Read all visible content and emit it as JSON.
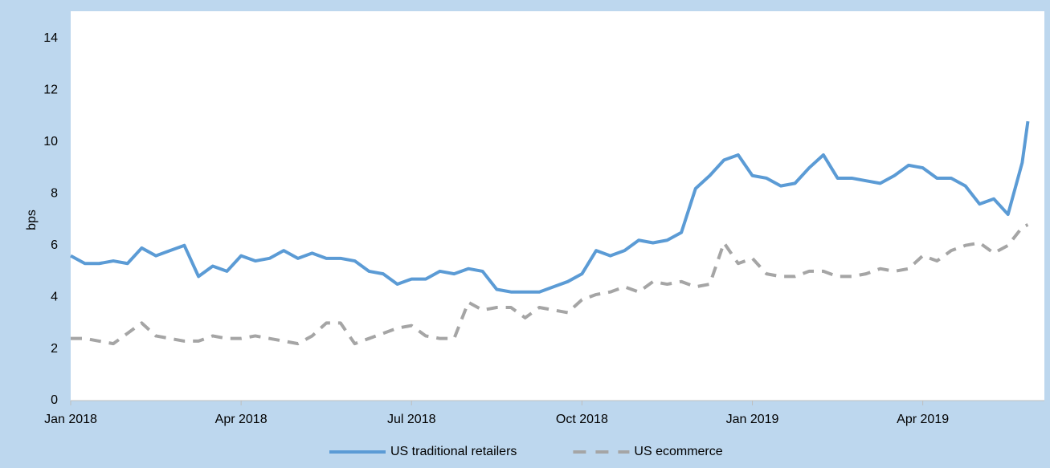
{
  "chart_data": {
    "type": "line",
    "y_label": "bps",
    "x": [
      0,
      0.25,
      0.5,
      0.75,
      1,
      1.25,
      1.5,
      1.75,
      2,
      2.25,
      2.5,
      2.75,
      3,
      3.25,
      3.5,
      3.75,
      4,
      4.25,
      4.5,
      4.75,
      5,
      5.25,
      5.5,
      5.75,
      6,
      6.25,
      6.5,
      6.75,
      7,
      7.25,
      7.5,
      7.75,
      8,
      8.25,
      8.5,
      8.75,
      9,
      9.25,
      9.5,
      9.75,
      10,
      10.25,
      10.5,
      10.75,
      11,
      11.25,
      11.5,
      11.75,
      12,
      12.25,
      12.5,
      12.75,
      13,
      13.25,
      13.5,
      13.75,
      14,
      14.25,
      14.5,
      14.75,
      15,
      15.25,
      15.5,
      15.75,
      16,
      16.25,
      16.5,
      16.75,
      16.85
    ],
    "series": [
      {
        "name": "US traditional retailers",
        "color": "#5b9bd5",
        "dashed": false,
        "values": [
          5.6,
          5.3,
          5.3,
          5.4,
          5.3,
          5.9,
          5.6,
          5.8,
          6.0,
          4.8,
          5.2,
          5.0,
          5.6,
          5.4,
          5.5,
          5.8,
          5.5,
          5.7,
          5.5,
          5.5,
          5.4,
          5.0,
          4.9,
          4.5,
          4.7,
          4.7,
          5.0,
          4.9,
          5.1,
          5.0,
          4.3,
          4.2,
          4.2,
          4.2,
          4.4,
          4.6,
          4.9,
          5.8,
          5.6,
          5.8,
          6.2,
          6.1,
          6.2,
          6.5,
          8.2,
          8.7,
          9.3,
          9.5,
          8.7,
          8.6,
          8.3,
          8.4,
          9.0,
          9.5,
          8.6,
          8.6,
          8.5,
          8.4,
          8.7,
          9.1,
          9.0,
          8.6,
          8.6,
          8.3,
          7.6,
          7.8,
          7.2,
          9.2,
          10.8
        ]
      },
      {
        "name": "US ecommerce",
        "color": "#a5a5a5",
        "dashed": true,
        "values": [
          2.4,
          2.4,
          2.3,
          2.2,
          2.6,
          3.0,
          2.5,
          2.4,
          2.3,
          2.3,
          2.5,
          2.4,
          2.4,
          2.5,
          2.4,
          2.3,
          2.2,
          2.5,
          3.0,
          3.0,
          2.2,
          2.4,
          2.6,
          2.8,
          2.9,
          2.5,
          2.4,
          2.4,
          3.8,
          3.5,
          3.6,
          3.6,
          3.2,
          3.6,
          3.5,
          3.4,
          3.9,
          4.1,
          4.2,
          4.4,
          4.2,
          4.6,
          4.5,
          4.6,
          4.4,
          4.5,
          6.1,
          5.3,
          5.5,
          4.9,
          4.8,
          4.8,
          5.0,
          5.0,
          4.8,
          4.8,
          4.9,
          5.1,
          5.0,
          5.1,
          5.6,
          5.4,
          5.8,
          6.0,
          6.1,
          5.7,
          6.0,
          6.7,
          6.8
        ]
      }
    ],
    "xlim": [
      0,
      16.9
    ],
    "xticks": [
      {
        "value": 0,
        "label": "Jan 2018"
      },
      {
        "value": 3,
        "label": "Apr 2018"
      },
      {
        "value": 6,
        "label": "Jul 2018"
      },
      {
        "value": 9,
        "label": "Oct 2018"
      },
      {
        "value": 12,
        "label": "Jan 2019"
      },
      {
        "value": 15,
        "label": "Apr 2019"
      }
    ],
    "ylim": [
      0,
      14
    ],
    "yticks": [
      0,
      2,
      4,
      6,
      8,
      10,
      12,
      14
    ],
    "legend": "bottom"
  }
}
